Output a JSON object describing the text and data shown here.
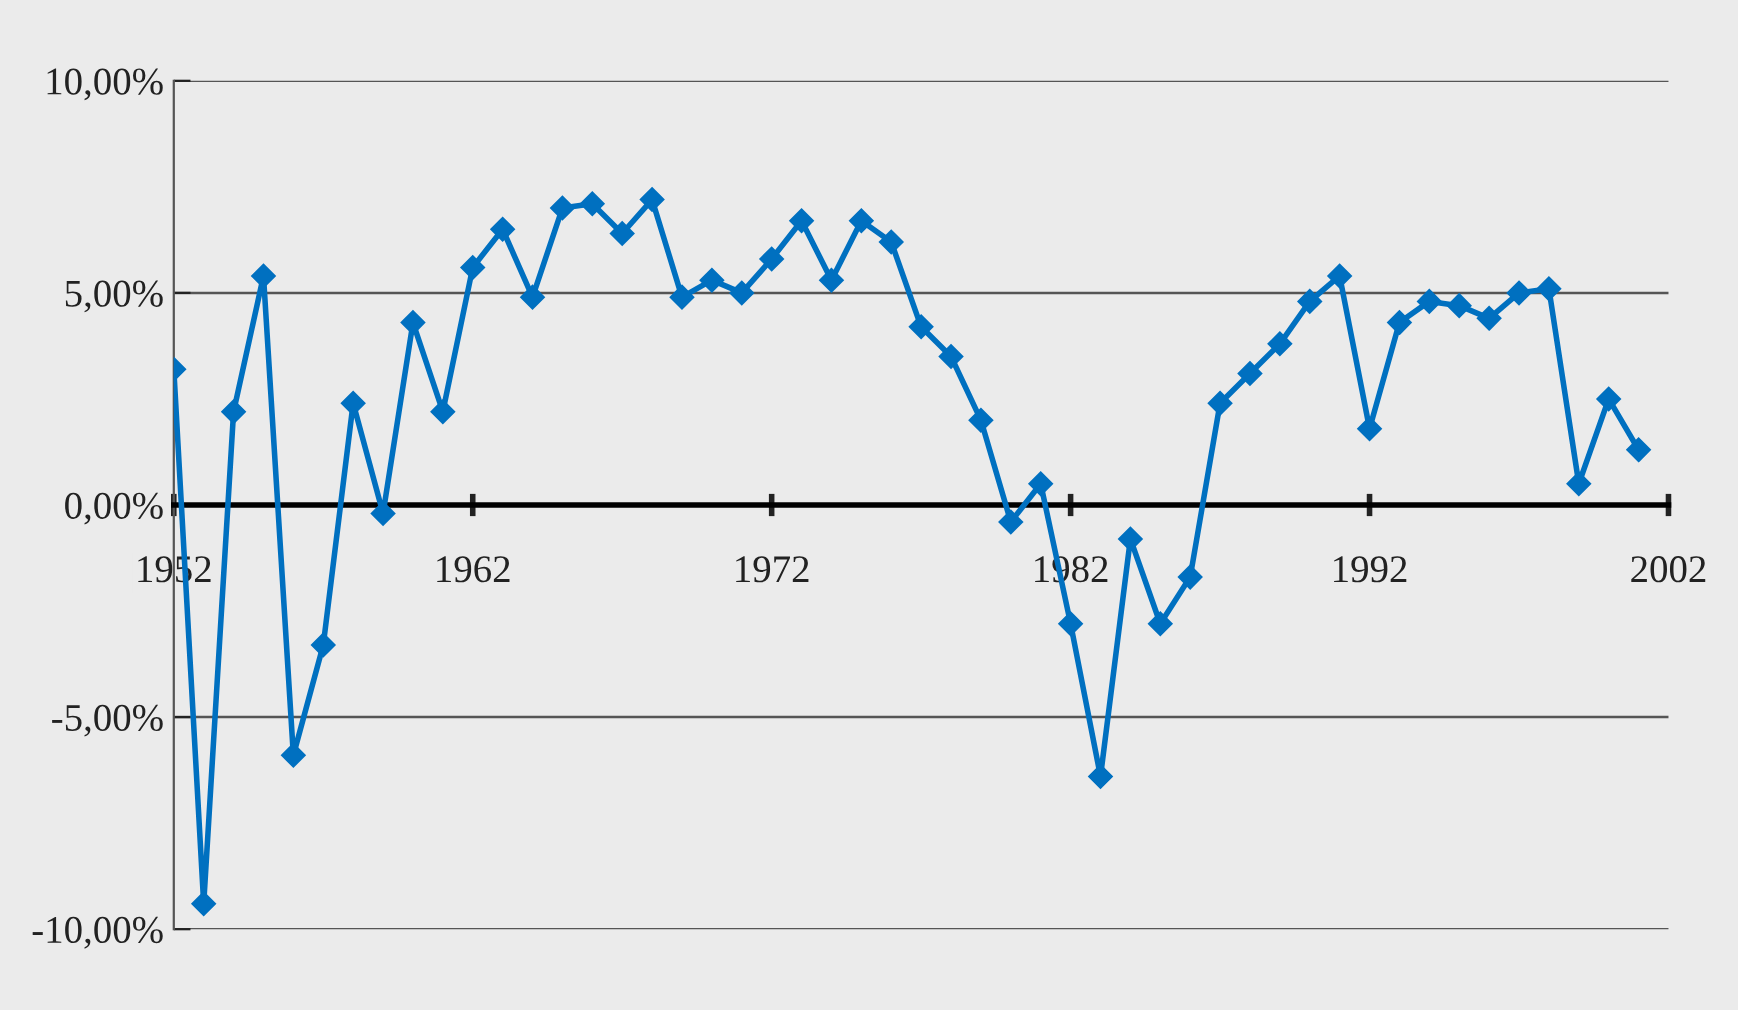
{
  "chart_data": {
    "type": "line",
    "x": [
      1952,
      1953,
      1954,
      1955,
      1956,
      1957,
      1958,
      1959,
      1960,
      1961,
      1962,
      1963,
      1964,
      1965,
      1966,
      1967,
      1968,
      1969,
      1970,
      1971,
      1972,
      1973,
      1974,
      1975,
      1976,
      1977,
      1978,
      1979,
      1980,
      1981,
      1982,
      1983,
      1984,
      1985,
      1986,
      1987,
      1988,
      1989,
      1990,
      1991,
      1992,
      1993,
      1994,
      1995,
      1996,
      1997,
      1998,
      1999,
      2000,
      2001
    ],
    "series": [
      {
        "color": "#0070c0",
        "values": [
          3.2,
          -9.4,
          2.2,
          5.4,
          -5.9,
          -3.3,
          2.4,
          -0.2,
          4.3,
          2.2,
          5.6,
          6.5,
          4.9,
          7.0,
          7.1,
          6.4,
          7.2,
          4.9,
          5.3,
          5.0,
          5.8,
          6.7,
          5.3,
          6.7,
          6.2,
          4.2,
          3.5,
          2.0,
          -0.4,
          0.5,
          -2.8,
          -6.4,
          -0.8,
          -2.8,
          -1.7,
          2.4,
          3.1,
          3.8,
          4.8,
          5.4,
          1.8,
          4.3,
          4.8,
          4.7,
          4.4,
          5.0,
          5.1,
          0.5,
          2.5,
          1.3
        ]
      }
    ],
    "xlim": [
      1952,
      2002
    ],
    "xticks": [
      1952,
      1962,
      1972,
      1982,
      1992,
      2002
    ],
    "ylim": [
      -10,
      10
    ],
    "yticks": [
      {
        "value": -10,
        "label": "-10,00%"
      },
      {
        "value": -5,
        "label": "-5,00%"
      },
      {
        "value": 0,
        "label": "0,00%"
      },
      {
        "value": 5,
        "label": "5,00%"
      },
      {
        "value": 10,
        "label": "10,00%"
      }
    ],
    "grid": "y",
    "marker": "diamond",
    "line_style": "solid"
  }
}
